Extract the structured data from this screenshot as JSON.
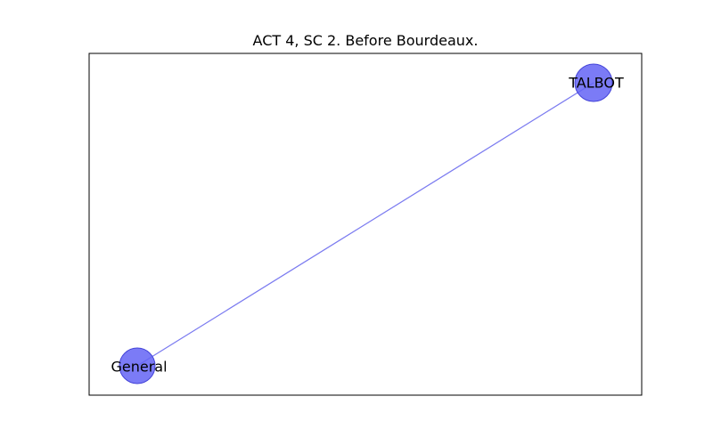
{
  "figure": {
    "title": "ACT 4, SC 2. Before Bourdeaux."
  },
  "graph": {
    "node_color": "#6464f5",
    "node_stroke": "#4444d8",
    "edge_color": "#7b7bf0",
    "nodes": [
      {
        "id": "talbot",
        "label": "TALBOT"
      },
      {
        "id": "general",
        "label": "General"
      }
    ],
    "edges": [
      {
        "source": "talbot",
        "target": "general"
      }
    ]
  }
}
